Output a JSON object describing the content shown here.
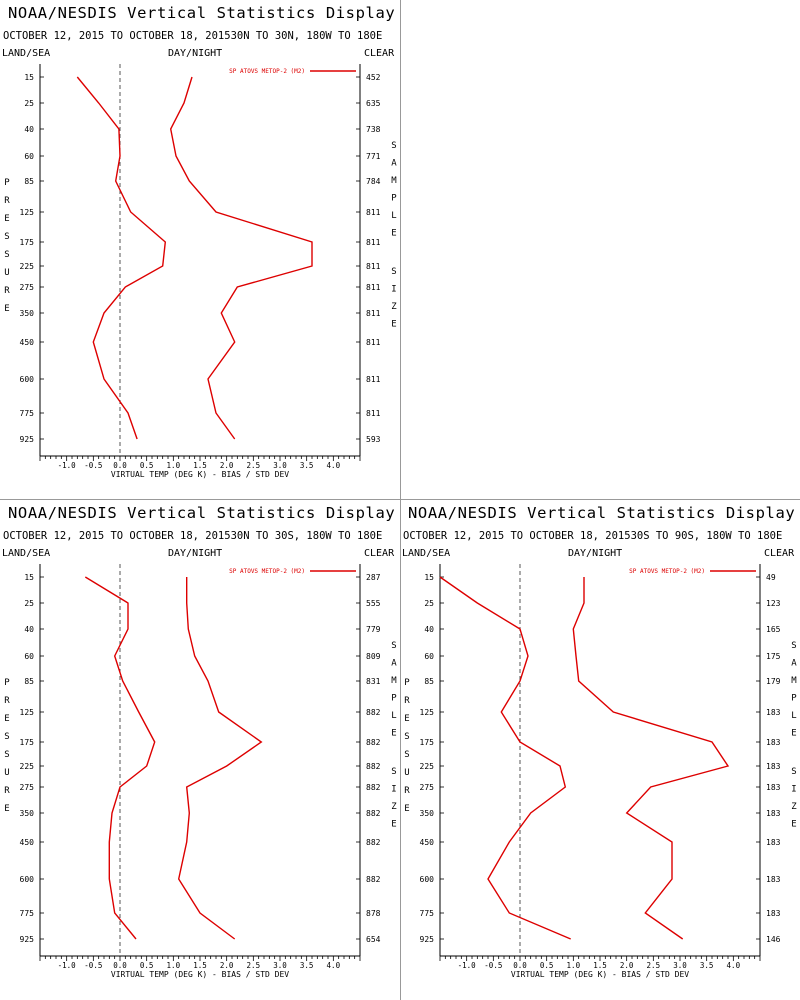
{
  "colors": {
    "series": "#dd0000",
    "dashed_zero": "#555555",
    "axis": "#000000"
  },
  "labels": {
    "land_sea": "LAND/SEA",
    "day_night": "DAY/NIGHT",
    "clear": "CLEAR",
    "pressure_word": "PRESSURE",
    "sample_size_words": [
      "SAMPLE",
      "SIZE"
    ]
  },
  "chart_data": [
    {
      "type": "line",
      "title": "NOAA/NESDIS Vertical Statistics Display",
      "subtitle": "OCTOBER 12, 2015 TO OCTOBER 18, 201530N TO 30N, 180W TO 180E",
      "xlabel": "VIRTUAL TEMP (DEG K) - BIAS / STD DEV",
      "ylabel": "PRESSURE",
      "xlim": [
        -1.5,
        4.5
      ],
      "x_ticks": [
        "-1.0",
        "-0.5",
        "0.0",
        "0.5",
        "1.0",
        "1.5",
        "2.0",
        "2.5",
        "3.0",
        "3.5",
        "4.0"
      ],
      "pressure_levels": [
        "15",
        "25",
        "40",
        "60",
        "85",
        "125",
        "175",
        "225",
        "275",
        "350",
        "450",
        "600",
        "775",
        "925"
      ],
      "sample_size": [
        "452",
        "635",
        "738",
        "771",
        "784",
        "811",
        "811",
        "811",
        "811",
        "811",
        "811",
        "811",
        "811",
        "593"
      ],
      "legend": "SP ATOVS METOP-2 (M2)",
      "series": [
        {
          "name": "bias",
          "values": [
            -0.8,
            -0.4,
            -0.02,
            0.0,
            -0.08,
            0.2,
            0.85,
            0.8,
            0.1,
            -0.3,
            -0.5,
            -0.3,
            0.15,
            0.32
          ]
        },
        {
          "name": "std dev",
          "values": [
            1.35,
            1.2,
            0.95,
            1.05,
            1.3,
            1.8,
            3.6,
            3.6,
            2.2,
            1.9,
            2.15,
            1.65,
            1.8,
            2.15
          ]
        }
      ]
    },
    {
      "type": "line",
      "title": "NOAA/NESDIS Vertical Statistics Display",
      "subtitle": "OCTOBER 12, 2015 TO OCTOBER 18, 201530N TO 30S, 180W TO 180E",
      "xlabel": "VIRTUAL TEMP (DEG K) - BIAS / STD DEV",
      "ylabel": "PRESSURE",
      "xlim": [
        -1.5,
        4.5
      ],
      "x_ticks": [
        "-1.0",
        "-0.5",
        "0.0",
        "0.5",
        "1.0",
        "1.5",
        "2.0",
        "2.5",
        "3.0",
        "3.5",
        "4.0"
      ],
      "pressure_levels": [
        "15",
        "25",
        "40",
        "60",
        "85",
        "125",
        "175",
        "225",
        "275",
        "350",
        "450",
        "600",
        "775",
        "925"
      ],
      "sample_size": [
        "287",
        "555",
        "779",
        "809",
        "831",
        "882",
        "882",
        "882",
        "882",
        "882",
        "882",
        "882",
        "878",
        "654"
      ],
      "legend": "SP ATOVS METOP-2 (M2)",
      "series": [
        {
          "name": "bias",
          "values": [
            -0.65,
            0.15,
            0.15,
            -0.1,
            0.05,
            0.35,
            0.65,
            0.5,
            0.0,
            -0.15,
            -0.2,
            -0.2,
            -0.1,
            0.3
          ]
        },
        {
          "name": "std dev",
          "values": [
            1.25,
            1.25,
            1.28,
            1.4,
            1.65,
            1.85,
            2.65,
            2.0,
            1.25,
            1.3,
            1.25,
            1.1,
            1.5,
            2.15
          ]
        }
      ]
    },
    {
      "type": "line",
      "title": "NOAA/NESDIS Vertical Statistics Display",
      "subtitle": "OCTOBER 12, 2015 TO OCTOBER 18, 201530S TO 90S, 180W TO 180E",
      "xlabel": "VIRTUAL TEMP (DEG K) - BIAS / STD DEV",
      "ylabel": "PRESSURE",
      "xlim": [
        -1.5,
        4.5
      ],
      "x_ticks": [
        "-1.0",
        "-0.5",
        "0.0",
        "0.5",
        "1.0",
        "1.5",
        "2.0",
        "2.5",
        "3.0",
        "3.5",
        "4.0"
      ],
      "pressure_levels": [
        "15",
        "25",
        "40",
        "60",
        "85",
        "125",
        "175",
        "225",
        "275",
        "350",
        "450",
        "600",
        "775",
        "925"
      ],
      "sample_size": [
        "49",
        "123",
        "165",
        "175",
        "179",
        "183",
        "183",
        "183",
        "183",
        "183",
        "183",
        "183",
        "183",
        "146"
      ],
      "legend": "SP ATOVS METOP-2 (M2)",
      "series": [
        {
          "name": "bias",
          "values": [
            -1.5,
            -0.8,
            0.0,
            0.15,
            0.0,
            -0.35,
            0.0,
            0.75,
            0.85,
            0.2,
            -0.2,
            -0.6,
            -0.2,
            0.95
          ]
        },
        {
          "name": "std dev",
          "values": [
            1.2,
            1.2,
            1.0,
            1.05,
            1.1,
            1.75,
            3.6,
            3.9,
            2.45,
            2.0,
            2.85,
            2.85,
            2.35,
            3.05
          ]
        }
      ]
    }
  ]
}
